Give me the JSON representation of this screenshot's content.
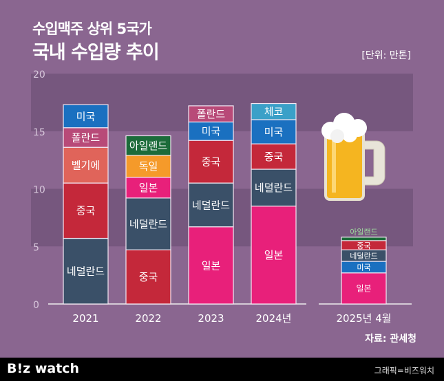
{
  "title_line1": "수입맥주 상위 5국가",
  "title_line2": "국내 수입량 추이",
  "unit": "[단위: 만톤]",
  "source": "자료: 관세청",
  "logo": "B!z watch",
  "credit": "그래픽=비즈워치",
  "colors": {
    "background": "#8a6690",
    "band": "#76577e",
    "네덜란드": "#3a5068",
    "중국": "#c4283a",
    "벨기에": "#e0645a",
    "폴란드": "#b84a78",
    "미국": "#1a70c0",
    "아일랜드": "#1c6b3a",
    "독일": "#f59a2a",
    "일본": "#e8207a",
    "체코": "#3aa0c8"
  },
  "chart_data": {
    "type": "bar",
    "stacked": true,
    "ylim": [
      0,
      20
    ],
    "yticks": [
      0,
      5,
      10,
      15,
      20
    ],
    "categories": [
      "2021",
      "2022",
      "2023",
      "2024년",
      "2025년 4월"
    ],
    "stacks": [
      [
        {
          "name": "네덜란드",
          "value": 5.7
        },
        {
          "name": "중국",
          "value": 4.8
        },
        {
          "name": "벨기에",
          "value": 3.1
        },
        {
          "name": "폴란드",
          "value": 1.7
        },
        {
          "name": "미국",
          "value": 2.0
        }
      ],
      [
        {
          "name": "중국",
          "value": 4.7
        },
        {
          "name": "네덜란드",
          "value": 4.5
        },
        {
          "name": "일본",
          "value": 1.8
        },
        {
          "name": "독일",
          "value": 1.9
        },
        {
          "name": "아일랜드",
          "value": 1.7
        }
      ],
      [
        {
          "name": "일본",
          "value": 6.7
        },
        {
          "name": "네덜란드",
          "value": 3.8
        },
        {
          "name": "중국",
          "value": 3.7
        },
        {
          "name": "미국",
          "value": 1.6
        },
        {
          "name": "폴란드",
          "value": 1.4
        }
      ],
      [
        {
          "name": "일본",
          "value": 8.5
        },
        {
          "name": "네덜란드",
          "value": 3.2
        },
        {
          "name": "중국",
          "value": 2.2
        },
        {
          "name": "미국",
          "value": 2.1
        },
        {
          "name": "체코",
          "value": 1.4
        }
      ],
      [
        {
          "name": "일본",
          "value": 2.7
        },
        {
          "name": "미국",
          "value": 1.0
        },
        {
          "name": "네덜란드",
          "value": 1.0
        },
        {
          "name": "중국",
          "value": 0.8
        },
        {
          "name": "아일랜드",
          "value": 0.3
        }
      ]
    ]
  }
}
